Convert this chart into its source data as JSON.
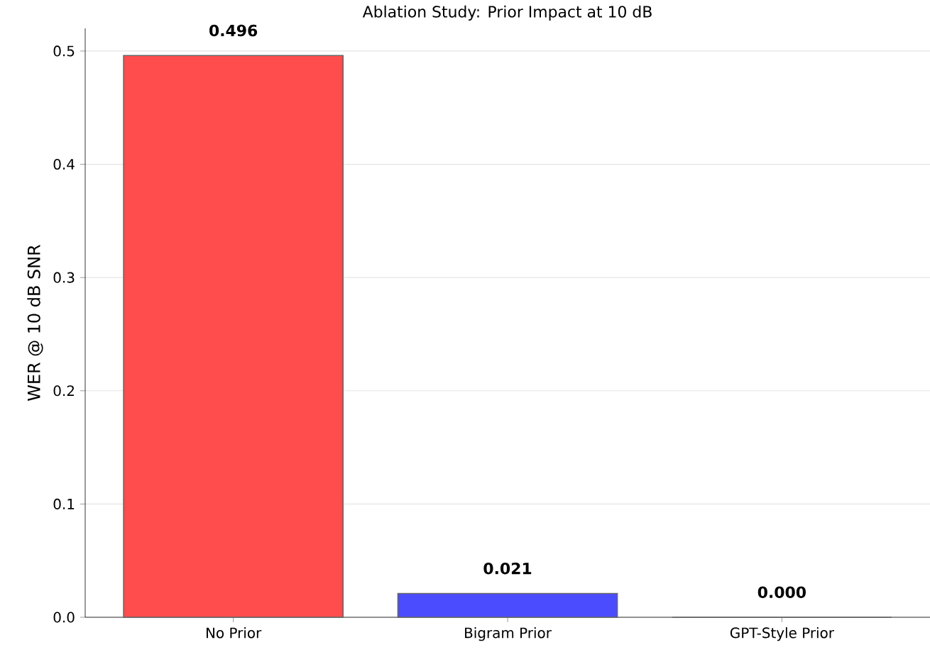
{
  "chart_data": {
    "type": "bar",
    "title": "Ablation Study: Prior Impact at 10 dB",
    "ylabel": "WER @ 10 dB SNR",
    "categories": [
      "No Prior",
      "Bigram Prior",
      "GPT-Style Prior"
    ],
    "values": [
      0.496,
      0.021,
      0.0
    ],
    "value_labels": [
      "0.496",
      "0.021",
      "0.000"
    ],
    "colors": [
      "#ff4c4c",
      "#4c4cff",
      "#4cb04c"
    ],
    "ylim": [
      0,
      0.52
    ],
    "yticks": [
      {
        "value": 0,
        "label": "0.0"
      },
      0.1,
      0.2,
      0.3,
      0.4,
      0.5
    ],
    "grid": "y"
  }
}
